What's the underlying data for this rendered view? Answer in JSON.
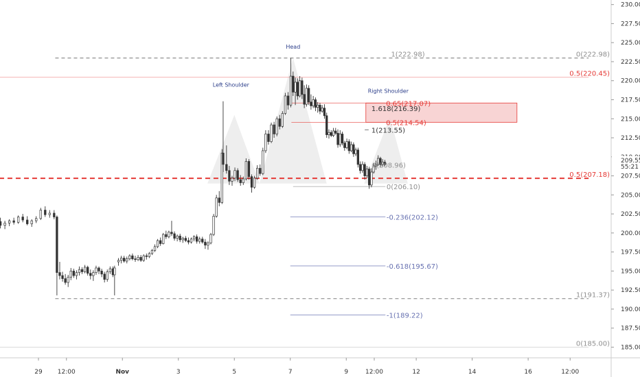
{
  "chart_data": {
    "type": "candlestick",
    "y_axis": {
      "ticks": [
        "230.00",
        "227.50",
        "225.00",
        "222.50",
        "220.00",
        "217.50",
        "215.00",
        "212.50",
        "210.00",
        "207.50",
        "205.00",
        "202.50",
        "200.00",
        "197.50",
        "195.00",
        "192.50",
        "190.00",
        "187.50",
        "185.00"
      ],
      "range": [
        183.6,
        230.6
      ],
      "badges": [
        {
          "text": "209.55",
          "value": 209.55,
          "color": "#333333"
        },
        {
          "text": "55:21",
          "value": 208.7,
          "color": "#333333"
        }
      ]
    },
    "x_axis": {
      "ticks": [
        {
          "label": "29",
          "day": 0
        },
        {
          "label": "12:00",
          "day": 0.5
        },
        {
          "label": "Nov",
          "day": 1.5
        },
        {
          "label": "3",
          "day": 2.5
        },
        {
          "label": "5",
          "day": 3.5
        },
        {
          "label": "7",
          "day": 4.5
        },
        {
          "label": "9",
          "day": 5.5
        },
        {
          "label": "12:00",
          "day": 6
        },
        {
          "label": "12",
          "day": 6.75
        },
        {
          "label": "14",
          "day": 7.75
        },
        {
          "label": "16",
          "day": 8.75
        },
        {
          "label": "12:00",
          "day": 9.5
        }
      ]
    },
    "colors": {
      "up": "#ffffff",
      "down": "#333333",
      "wick": "#333333",
      "red": "#e53935",
      "blue": "#6670b0",
      "gray": "#8f8f8f"
    },
    "pattern_labels": [
      {
        "text": "Head",
        "day": 4.55,
        "price": 224.2
      },
      {
        "text": "Left Shoulder",
        "day": 3.44,
        "price": 219.2
      },
      {
        "text": "Right Shoulder",
        "day": 6.25,
        "price": 218.4
      }
    ],
    "levels": [
      {
        "label": "0(222.98)",
        "price": 222.98,
        "from": 0.3,
        "to": 9.83,
        "style": "dashed",
        "color": "#8f8f8f",
        "text_color": "#8f8f8f"
      },
      {
        "label": "1(222.98)",
        "price": 222.98,
        "from": null,
        "to": null,
        "style": "none",
        "color": "#8f8f8f",
        "text_color": "#8f8f8f",
        "text_day": 6.3
      },
      {
        "label": "0.5(220.45)",
        "price": 220.45,
        "from": -0.7,
        "to": 9.83,
        "style": "solid",
        "color": "#f29a9a",
        "text_color": "#e53935"
      },
      {
        "label": "0.5(207.18)",
        "price": 207.18,
        "from": -0.7,
        "to": 9.83,
        "style": "thick-dashed",
        "color": "#e53935",
        "text_color": "#e53935"
      },
      {
        "label": "1(191.37)",
        "price": 191.37,
        "from": 0.3,
        "to": 9.83,
        "style": "dashed",
        "color": "#8f8f8f",
        "text_color": "#8f8f8f"
      },
      {
        "label": "0(185.00)",
        "price": 185.0,
        "from": -0.7,
        "to": 9.83,
        "style": "solid",
        "color": "#d5d5d5",
        "text_color": "#8f8f8f"
      }
    ],
    "fib_labels": [
      {
        "text": "0.65(217.07)",
        "price": 217.07,
        "day": 6.21,
        "color": "#e53935",
        "line_from": 4.52,
        "line_to": 6.2
      },
      {
        "text": "1.618(216.39)",
        "price": 216.39,
        "day": 5.95,
        "color": "#333333",
        "line_from": null,
        "line_to": null
      },
      {
        "text": "0.5(214.54)",
        "price": 214.54,
        "day": 6.21,
        "color": "#e53935",
        "line_from": 4.52,
        "line_to": 6.2
      },
      {
        "text": "1(213.55)",
        "price": 213.55,
        "day": 5.95,
        "color": "#333333",
        "line_from": 5.83,
        "line_to": 5.9
      },
      {
        "text": "0(208.96)",
        "price": 208.96,
        "day": 5.96,
        "color": "#8f8f8f",
        "line_from": null,
        "line_to": null
      },
      {
        "text": "0(206.10)",
        "price": 206.1,
        "day": 6.22,
        "color": "#8f8f8f",
        "line_from": 4.55,
        "line_to": 6.2
      },
      {
        "text": "-0.236(202.12)",
        "price": 202.12,
        "day": 6.22,
        "color": "#6670b0",
        "line_from": 4.5,
        "line_to": 6.2
      },
      {
        "text": "-0.618(195.67)",
        "price": 195.67,
        "day": 6.22,
        "color": "#6670b0",
        "line_from": 4.5,
        "line_to": 6.2
      },
      {
        "text": "-1(189.22)",
        "price": 189.22,
        "day": 6.22,
        "color": "#6670b0",
        "line_from": 4.5,
        "line_to": 6.2
      }
    ],
    "zone": {
      "from_day": 5.85,
      "to_day": 8.55,
      "top": 217.07,
      "bottom": 214.54
    },
    "hs_polygon": [
      [
        3.02,
        206.5
      ],
      [
        3.5,
        215.5
      ],
      [
        3.95,
        206.5
      ],
      [
        4.55,
        223.0
      ],
      [
        5.15,
        206.5
      ],
      [
        5.82,
        206.5
      ],
      [
        6.28,
        215.2
      ],
      [
        6.6,
        206.5
      ]
    ],
    "candles": [
      [
        -0.68,
        201.5,
        202.0,
        200.6,
        201.0
      ],
      [
        -0.6,
        201.0,
        201.6,
        200.5,
        201.3
      ],
      [
        -0.52,
        201.3,
        201.8,
        200.9,
        201.6
      ],
      [
        -0.44,
        201.6,
        202.0,
        201.1,
        201.4
      ],
      [
        -0.36,
        201.4,
        202.3,
        201.2,
        202.1
      ],
      [
        -0.28,
        202.1,
        202.5,
        201.4,
        201.7
      ],
      [
        -0.2,
        201.7,
        202.2,
        201.0,
        201.2
      ],
      [
        -0.12,
        201.2,
        201.8,
        200.8,
        201.6
      ],
      [
        -0.04,
        201.6,
        202.2,
        201.3,
        201.9
      ],
      [
        0.04,
        201.9,
        203.3,
        201.7,
        203.0
      ],
      [
        0.12,
        203.0,
        203.5,
        202.1,
        202.4
      ],
      [
        0.2,
        202.4,
        203.0,
        202.0,
        202.6
      ],
      [
        0.28,
        202.6,
        203.0,
        201.8,
        202.1
      ],
      [
        0.33,
        202.1,
        202.3,
        191.8,
        194.8
      ],
      [
        0.38,
        194.8,
        196.2,
        193.9,
        194.4
      ],
      [
        0.43,
        194.4,
        194.9,
        193.6,
        194.0
      ],
      [
        0.48,
        194.0,
        194.6,
        193.2,
        193.5
      ],
      [
        0.53,
        193.5,
        194.5,
        192.9,
        194.2
      ],
      [
        0.58,
        194.2,
        195.4,
        193.8,
        195.0
      ],
      [
        0.63,
        195.0,
        195.3,
        194.1,
        194.4
      ],
      [
        0.68,
        194.4,
        195.1,
        193.9,
        194.8
      ],
      [
        0.73,
        194.8,
        195.6,
        194.4,
        195.2
      ],
      [
        0.78,
        195.2,
        195.5,
        194.6,
        194.9
      ],
      [
        0.83,
        194.9,
        195.8,
        194.7,
        195.5
      ],
      [
        0.88,
        195.5,
        195.7,
        194.4,
        194.7
      ],
      [
        0.93,
        194.7,
        195.2,
        193.9,
        194.4
      ],
      [
        0.98,
        194.4,
        195.1,
        193.7,
        194.8
      ],
      [
        1.03,
        194.8,
        195.7,
        194.5,
        195.4
      ],
      [
        1.08,
        195.4,
        195.6,
        194.6,
        195.0
      ],
      [
        1.13,
        195.0,
        195.3,
        194.2,
        194.6
      ],
      [
        1.18,
        194.6,
        194.9,
        193.5,
        193.9
      ],
      [
        1.23,
        193.9,
        195.2,
        193.6,
        194.9
      ],
      [
        1.28,
        194.9,
        195.6,
        194.6,
        195.3
      ],
      [
        1.33,
        195.3,
        195.6,
        194.2,
        194.5
      ],
      [
        1.36,
        194.5,
        195.7,
        191.8,
        195.4
      ],
      [
        1.43,
        196.2,
        196.7,
        195.7,
        196.4
      ],
      [
        1.48,
        196.4,
        197.0,
        196.0,
        196.7
      ],
      [
        1.53,
        196.7,
        197.0,
        196.1,
        196.3
      ],
      [
        1.58,
        196.3,
        196.9,
        196.0,
        196.6
      ],
      [
        1.63,
        196.6,
        197.2,
        196.4,
        197.0
      ],
      [
        1.68,
        197.0,
        197.3,
        196.4,
        196.6
      ],
      [
        1.73,
        196.6,
        197.0,
        196.2,
        196.5
      ],
      [
        1.78,
        196.5,
        197.1,
        196.3,
        196.8
      ],
      [
        1.83,
        196.8,
        197.1,
        196.2,
        196.4
      ],
      [
        1.88,
        196.4,
        197.2,
        196.2,
        197.0
      ],
      [
        1.93,
        197.0,
        197.3,
        196.5,
        196.9
      ],
      [
        1.98,
        196.9,
        197.5,
        196.7,
        197.3
      ],
      [
        2.03,
        197.3,
        197.9,
        197.1,
        197.7
      ],
      [
        2.08,
        197.7,
        198.5,
        197.5,
        198.2
      ],
      [
        2.13,
        198.2,
        199.2,
        198.0,
        199.0
      ],
      [
        2.18,
        199.0,
        199.4,
        198.3,
        198.6
      ],
      [
        2.23,
        198.6,
        200.0,
        198.5,
        199.8
      ],
      [
        2.28,
        199.8,
        200.3,
        199.2,
        199.5
      ],
      [
        2.33,
        199.5,
        200.3,
        199.3,
        200.1
      ],
      [
        2.38,
        200.1,
        201.6,
        199.6,
        199.9
      ],
      [
        2.43,
        199.9,
        200.2,
        199.0,
        199.3
      ],
      [
        2.48,
        199.3,
        199.8,
        198.9,
        199.6
      ],
      [
        2.53,
        199.6,
        199.9,
        198.8,
        199.1
      ],
      [
        2.58,
        199.1,
        199.5,
        198.7,
        199.3
      ],
      [
        2.63,
        199.3,
        199.6,
        198.8,
        199.0
      ],
      [
        2.68,
        199.0,
        199.4,
        198.5,
        198.8
      ],
      [
        2.73,
        198.8,
        199.4,
        198.6,
        199.2
      ],
      [
        2.78,
        199.2,
        199.7,
        198.9,
        199.5
      ],
      [
        2.83,
        199.5,
        199.8,
        198.6,
        198.9
      ],
      [
        2.88,
        198.9,
        199.5,
        198.6,
        199.2
      ],
      [
        2.93,
        199.2,
        199.5,
        198.6,
        198.8
      ],
      [
        2.98,
        198.8,
        199.2,
        197.9,
        198.4
      ],
      [
        3.03,
        198.4,
        198.9,
        197.8,
        198.7
      ],
      [
        3.08,
        198.7,
        200.0,
        198.5,
        199.8
      ],
      [
        3.13,
        199.8,
        202.5,
        199.6,
        202.2
      ],
      [
        3.18,
        202.2,
        205.0,
        202.0,
        204.6
      ],
      [
        3.23,
        204.6,
        205.5,
        203.5,
        204.0
      ],
      [
        3.28,
        204.0,
        211.0,
        203.8,
        210.5
      ],
      [
        3.3,
        210.5,
        217.3,
        208.0,
        209.0
      ],
      [
        3.36,
        209.0,
        211.5,
        207.8,
        208.2
      ],
      [
        3.41,
        208.2,
        208.8,
        206.3,
        206.8
      ],
      [
        3.46,
        206.8,
        207.5,
        206.2,
        207.2
      ],
      [
        3.51,
        207.2,
        208.6,
        206.8,
        208.2
      ],
      [
        3.56,
        208.2,
        208.5,
        206.7,
        207.0
      ],
      [
        3.61,
        207.0,
        207.6,
        206.2,
        206.6
      ],
      [
        3.66,
        206.6,
        207.4,
        206.3,
        207.1
      ],
      [
        3.71,
        207.1,
        209.8,
        206.9,
        209.4
      ],
      [
        3.76,
        209.4,
        209.7,
        207.0,
        207.4
      ],
      [
        3.81,
        207.4,
        207.7,
        205.3,
        206.0
      ],
      [
        3.86,
        206.0,
        207.5,
        205.8,
        207.2
      ],
      [
        3.91,
        207.2,
        208.9,
        207.0,
        208.5
      ],
      [
        3.96,
        208.5,
        209.0,
        207.5,
        207.8
      ],
      [
        4.01,
        207.8,
        211.2,
        207.6,
        210.8
      ],
      [
        4.06,
        210.8,
        213.5,
        210.5,
        213.0
      ],
      [
        4.11,
        213.0,
        213.5,
        211.6,
        212.0
      ],
      [
        4.16,
        212.0,
        214.5,
        211.8,
        214.2
      ],
      [
        4.21,
        214.2,
        214.6,
        212.5,
        213.0
      ],
      [
        4.26,
        213.0,
        215.3,
        212.7,
        215.0
      ],
      [
        4.31,
        215.0,
        215.5,
        213.6,
        214.0
      ],
      [
        4.36,
        214.0,
        216.0,
        213.8,
        215.7
      ],
      [
        4.41,
        215.7,
        218.4,
        215.5,
        218.0
      ],
      [
        4.46,
        218.0,
        218.5,
        216.2,
        216.8
      ],
      [
        4.51,
        216.8,
        222.98,
        216.5,
        220.6
      ],
      [
        4.55,
        220.6,
        221.2,
        218.0,
        218.5
      ],
      [
        4.59,
        218.5,
        220.4,
        216.8,
        219.8
      ],
      [
        4.63,
        219.8,
        220.3,
        217.5,
        218.0
      ],
      [
        4.67,
        218.0,
        220.6,
        217.8,
        220.0
      ],
      [
        4.71,
        220.0,
        220.4,
        217.6,
        218.2
      ],
      [
        4.75,
        218.2,
        219.4,
        216.4,
        216.9
      ],
      [
        4.79,
        216.9,
        219.5,
        216.6,
        219.0
      ],
      [
        4.83,
        219.0,
        219.4,
        216.8,
        217.2
      ],
      [
        4.87,
        217.2,
        218.2,
        216.2,
        216.7
      ],
      [
        4.91,
        216.7,
        218.0,
        216.4,
        217.5
      ],
      [
        4.95,
        217.5,
        217.8,
        216.0,
        216.5
      ],
      [
        4.99,
        216.5,
        217.2,
        215.8,
        216.8
      ],
      [
        5.03,
        216.8,
        217.1,
        215.6,
        216.0
      ],
      [
        5.07,
        216.0,
        216.8,
        215.8,
        216.4
      ],
      [
        5.11,
        216.4,
        216.9,
        215.0,
        215.4
      ],
      [
        5.15,
        215.4,
        215.8,
        212.5,
        212.9
      ],
      [
        5.19,
        212.9,
        213.6,
        212.4,
        213.2
      ],
      [
        5.23,
        213.2,
        213.5,
        212.6,
        212.8
      ],
      [
        5.27,
        212.8,
        213.8,
        212.6,
        213.4
      ],
      [
        5.31,
        213.4,
        213.8,
        212.9,
        213.1
      ],
      [
        5.35,
        213.1,
        213.6,
        211.2,
        211.6
      ],
      [
        5.39,
        211.6,
        213.5,
        211.3,
        213.0
      ],
      [
        5.43,
        213.0,
        213.3,
        211.5,
        211.8
      ],
      [
        5.47,
        211.8,
        212.1,
        210.8,
        211.2
      ],
      [
        5.51,
        211.2,
        212.4,
        211.0,
        212.0
      ],
      [
        5.55,
        212.0,
        212.3,
        210.4,
        210.8
      ],
      [
        5.59,
        210.8,
        212.0,
        210.6,
        211.6
      ],
      [
        5.63,
        211.6,
        211.9,
        210.0,
        210.4
      ],
      [
        5.67,
        210.4,
        211.2,
        210.1,
        210.9
      ],
      [
        5.71,
        210.9,
        211.2,
        208.6,
        209.0
      ],
      [
        5.75,
        209.0,
        209.4,
        207.8,
        208.2
      ],
      [
        5.79,
        208.2,
        209.4,
        207.9,
        209.0
      ],
      [
        5.83,
        209.0,
        209.3,
        207.0,
        207.5
      ],
      [
        5.87,
        207.5,
        208.8,
        207.2,
        208.4
      ],
      [
        5.91,
        208.4,
        208.7,
        205.8,
        206.3
      ],
      [
        5.95,
        206.3,
        208.5,
        206.0,
        208.0
      ],
      [
        5.99,
        208.0,
        209.2,
        207.8,
        208.8
      ],
      [
        6.03,
        208.8,
        209.5,
        208.3,
        209.0
      ],
      [
        6.07,
        209.0,
        210.2,
        208.8,
        209.8
      ],
      [
        6.11,
        209.8,
        210.0,
        208.7,
        209.0
      ],
      [
        6.15,
        209.0,
        209.7,
        208.7,
        209.3
      ],
      [
        6.19,
        209.3,
        209.6,
        208.8,
        209.0
      ]
    ]
  }
}
